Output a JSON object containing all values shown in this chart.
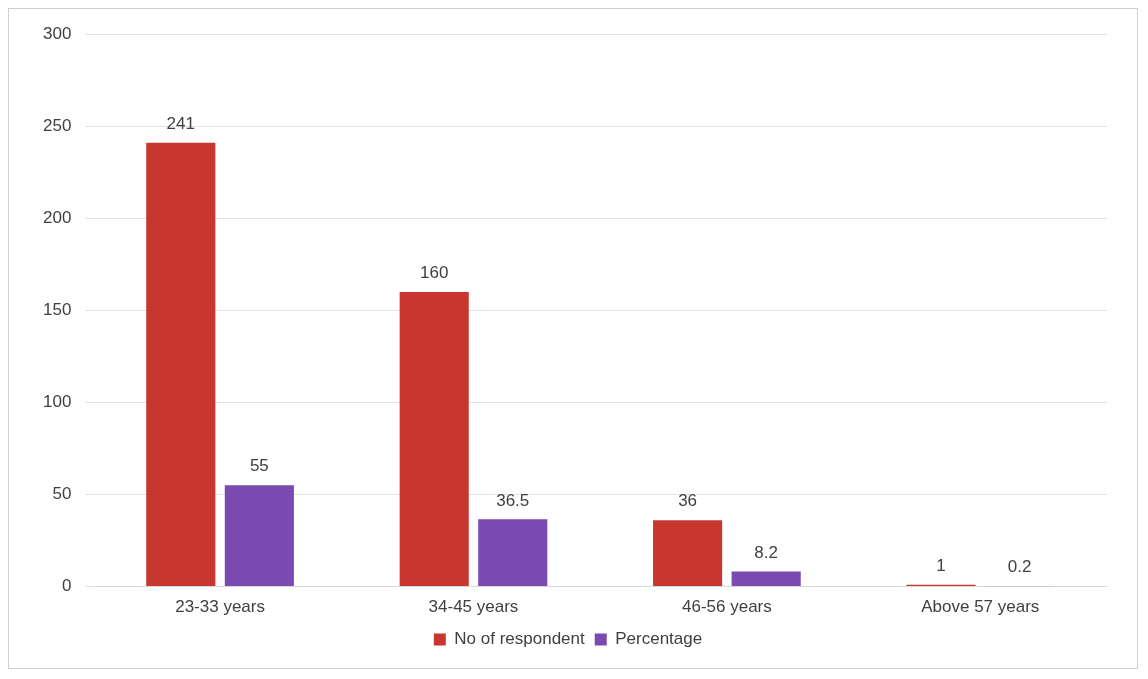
{
  "chart_data": {
    "type": "bar",
    "categories": [
      "23-33 years",
      "34-45 years",
      "46-56 years",
      "Above 57 years"
    ],
    "series": [
      {
        "name": "No of respondent",
        "color": "#c8372f",
        "values": [
          241,
          160,
          36,
          1
        ]
      },
      {
        "name": "Percentage",
        "color": "#7a4ab0",
        "values": [
          55,
          36.5,
          8.2,
          0.2
        ]
      }
    ],
    "ylim": [
      0,
      300
    ],
    "yticks": [
      0,
      50,
      100,
      150,
      200,
      250,
      300
    ],
    "grid": "y",
    "legend": "bottom",
    "data_labels": true
  }
}
